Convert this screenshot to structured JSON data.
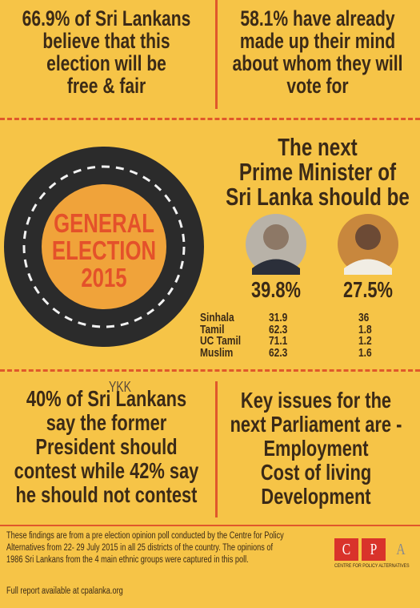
{
  "top_left": {
    "lines": [
      "66.9% of Sri Lankans",
      "believe that this",
      "election will be",
      "free & fair"
    ]
  },
  "top_right": {
    "lines": [
      "58.1% have already",
      "made up their mind",
      "about whom they will",
      "vote for"
    ]
  },
  "badge": {
    "lines": [
      "GENERAL",
      "ELECTION",
      "2015"
    ]
  },
  "pm": {
    "heading": [
      "The next",
      "Prime Minister of",
      "Sri Lanka should be"
    ],
    "totals": [
      "39.8%",
      "27.5%"
    ],
    "rows": [
      [
        "Sinhala",
        "31.9",
        "36"
      ],
      [
        "Tamil",
        "62.3",
        "1.8"
      ],
      [
        "UC Tamil",
        "71.1",
        "1.2"
      ],
      [
        "Muslim",
        "62.3",
        "1.6"
      ]
    ]
  },
  "bottom_left": {
    "overlay": "YKK",
    "lines": [
      "40% of Sri Lankans",
      "say the former",
      "President should",
      "contest while 42% say",
      "he should not contest"
    ]
  },
  "bottom_right": {
    "lines": [
      "Key issues for the",
      "next Parliament are -",
      "Employment",
      "Cost of living",
      "Development"
    ]
  },
  "footer": {
    "lines": [
      "These findings are from a pre election opinion poll conducted by the Centre for Policy",
      "Alternatives from 22- 29 July 2015 in all 25 districts of the country. The opinions of",
      "1986 Sri Lankans from the 4 main ethnic groups were captured in this poll."
    ],
    "link": "Full report available at cpalanka.org",
    "logo": {
      "letters": [
        "C",
        "P",
        "A"
      ],
      "name": "Centre for Policy Alternatives"
    }
  }
}
